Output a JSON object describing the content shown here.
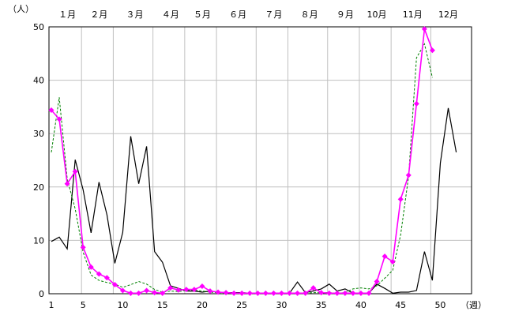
{
  "chart_data": {
    "type": "line",
    "ylabel": "（人）",
    "xlabel": "（週）",
    "ylim": [
      0,
      50
    ],
    "xlim": [
      1,
      53
    ],
    "yticks": [
      "0",
      "10",
      "20",
      "30",
      "40",
      "50"
    ],
    "xticks": [
      "1",
      "5",
      "10",
      "15",
      "20",
      "25",
      "30",
      "35",
      "40",
      "45",
      "50"
    ],
    "month_labels": [
      "１月",
      "２月",
      "３月",
      "４月",
      "５月",
      "６月",
      "７月",
      "８月",
      "９月",
      "10月",
      "11月",
      "12月"
    ],
    "grid": true,
    "colors": {
      "black": "#000000",
      "green": "#008000",
      "magenta": "#ff00ff",
      "grid": "#c0c0c0"
    },
    "series": [
      {
        "style": "black-solid",
        "x": [
          1,
          2,
          3,
          4,
          5,
          6,
          7,
          8,
          9,
          10,
          11,
          12,
          13,
          14,
          15,
          16,
          17,
          18,
          19,
          20,
          21,
          22,
          23,
          24,
          25,
          26,
          27,
          28,
          29,
          30,
          31,
          32,
          33,
          34,
          35,
          36,
          37,
          38,
          39,
          40,
          41,
          42,
          43,
          44,
          45,
          46,
          47,
          48,
          49,
          50,
          51,
          52
        ],
        "values": [
          9.8,
          10.6,
          8.4,
          25.1,
          19.5,
          11.4,
          20.9,
          14.8,
          5.7,
          11.5,
          29.5,
          20.6,
          27.6,
          7.9,
          5.9,
          1.5,
          1.0,
          0.5,
          0.5,
          0.3,
          0.5,
          0.3,
          0.2,
          0.2,
          0.2,
          0.1,
          0.1,
          0.1,
          0.1,
          0.1,
          0.1,
          2.2,
          0.2,
          0.5,
          0.9,
          1.8,
          0.5,
          0.9,
          0.1,
          0.1,
          0.1,
          1.8,
          1.0,
          0.1,
          0.3,
          0.3,
          0.6,
          7.9,
          2.5,
          24.5,
          34.8,
          26.5
        ]
      },
      {
        "style": "green-dashed",
        "x": [
          1,
          2,
          3,
          4,
          5,
          6,
          7,
          8,
          9,
          10,
          11,
          12,
          13,
          14,
          15,
          16,
          17,
          18,
          19,
          20,
          21,
          22,
          23,
          24,
          25,
          26,
          27,
          28,
          29,
          30,
          31,
          32,
          33,
          34,
          35,
          36,
          37,
          38,
          39,
          40,
          41,
          42,
          43,
          44,
          45,
          46,
          47,
          48,
          49
        ],
        "values": [
          26.5,
          36.8,
          21.5,
          15.9,
          7.8,
          3.5,
          2.5,
          2.1,
          1.8,
          1.2,
          1.7,
          2.3,
          1.8,
          0.8,
          0.3,
          0.5,
          0.4,
          0.6,
          0.7,
          0.5,
          0.3,
          0.2,
          0.2,
          0.1,
          0.1,
          0.1,
          0.1,
          0.1,
          0.1,
          0.1,
          0.1,
          0.1,
          0.1,
          0.2,
          0.2,
          0.2,
          0.1,
          0.2,
          0.9,
          1.1,
          0.9,
          1.5,
          2.9,
          4.4,
          11.0,
          22.0,
          44.2,
          46.8,
          40.5
        ]
      },
      {
        "style": "magenta-markers",
        "x": [
          1,
          2,
          3,
          4,
          5,
          6,
          7,
          8,
          9,
          10,
          11,
          12,
          13,
          14,
          15,
          16,
          17,
          18,
          19,
          20,
          21,
          22,
          23,
          24,
          25,
          26,
          27,
          28,
          29,
          30,
          31,
          32,
          33,
          34,
          35,
          36,
          37,
          38,
          39,
          40,
          41,
          42,
          43,
          44,
          45,
          46,
          47,
          48,
          49
        ],
        "values": [
          34.4,
          32.7,
          20.6,
          22.9,
          8.7,
          5.0,
          3.7,
          3.0,
          1.7,
          0.6,
          0.1,
          0.1,
          0.6,
          0.2,
          0.1,
          1.1,
          0.7,
          0.8,
          0.8,
          1.4,
          0.5,
          0.3,
          0.2,
          0.1,
          0.1,
          0.1,
          0.1,
          0.1,
          0.1,
          0.1,
          0.1,
          0.1,
          0.1,
          1.1,
          0.2,
          0.1,
          0.1,
          0.1,
          0.1,
          0.1,
          0.1,
          2.3,
          7.0,
          6.0,
          17.7,
          22.2,
          35.6,
          49.6,
          45.6
        ]
      }
    ]
  }
}
